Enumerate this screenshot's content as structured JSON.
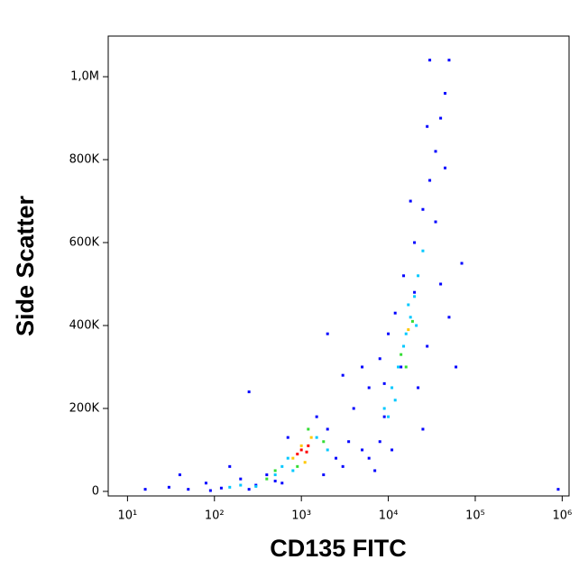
{
  "chart_data": {
    "type": "scatter",
    "x_label": "CD135 FITC",
    "y_label": "Side Scatter",
    "x_log": true,
    "xlim": [
      6,
      1200000
    ],
    "ylim": [
      -11000,
      1098000
    ],
    "xticks": [
      {
        "value": 10,
        "label": "10¹"
      },
      {
        "value": 100,
        "label": "10²"
      },
      {
        "value": 1000,
        "label": "10³"
      },
      {
        "value": 10000,
        "label": "10⁴"
      },
      {
        "value": 100000,
        "label": "10⁵"
      },
      {
        "value": 1000000,
        "label": "10⁶"
      }
    ],
    "yticks": [
      0,
      {
        "value": 200000,
        "label": "200K"
      },
      {
        "value": 400000,
        "label": "400K"
      },
      {
        "value": 600000,
        "label": "600K"
      },
      {
        "value": 800000,
        "label": "800K"
      },
      {
        "value": 1000000,
        "label": "1,0M"
      }
    ],
    "series": [
      {
        "color": "#0000ff",
        "x": [
          30,
          50,
          80,
          120,
          200,
          300,
          400,
          500,
          40,
          150,
          700,
          1500,
          2000,
          2500,
          3000,
          1800,
          600,
          250,
          90,
          3500,
          4000,
          5000,
          6000,
          7000,
          8000,
          9000,
          10000,
          12000,
          15000,
          20000,
          25000,
          30000,
          35000,
          40000,
          45000,
          30000,
          50000,
          18000,
          14000,
          22000,
          28000,
          40000,
          50000,
          60000,
          70000,
          25000,
          11000,
          5000,
          3000,
          2000,
          250,
          16,
          900000,
          6000,
          8000,
          35000,
          28000,
          45000,
          20000,
          9000
        ],
        "values": [
          10000,
          5000,
          20000,
          8000,
          30000,
          15000,
          40000,
          25000,
          40000,
          60000,
          130000,
          180000,
          150000,
          80000,
          60000,
          40000,
          20000,
          5000,
          2000,
          120000,
          200000,
          100000,
          250000,
          50000,
          320000,
          180000,
          380000,
          430000,
          520000,
          600000,
          680000,
          750000,
          820000,
          900000,
          960000,
          1040000,
          1040000,
          700000,
          300000,
          250000,
          350000,
          500000,
          420000,
          300000,
          550000,
          150000,
          100000,
          300000,
          280000,
          380000,
          240000,
          5000,
          5000,
          80000,
          120000,
          650000,
          880000,
          780000,
          480000,
          260000
        ]
      },
      {
        "color": "#00c8ff",
        "x": [
          150,
          200,
          300,
          500,
          600,
          800,
          1500,
          2000,
          700,
          9000,
          11000,
          13000,
          16000,
          18000,
          20000,
          22000,
          25000,
          15000,
          12000,
          10000,
          17000,
          21000
        ],
        "values": [
          10000,
          15000,
          12000,
          40000,
          60000,
          50000,
          130000,
          100000,
          80000,
          200000,
          250000,
          300000,
          380000,
          420000,
          470000,
          520000,
          580000,
          350000,
          220000,
          180000,
          450000,
          400000
        ]
      },
      {
        "color": "#33dd33",
        "x": [
          400,
          500,
          1200,
          1800,
          900,
          14000,
          19000,
          16000
        ],
        "values": [
          30000,
          50000,
          150000,
          120000,
          60000,
          330000,
          410000,
          300000
        ]
      },
      {
        "color": "#ffc800",
        "x": [
          800,
          1000,
          1300,
          1100,
          17000
        ],
        "values": [
          80000,
          110000,
          130000,
          70000,
          390000
        ]
      },
      {
        "color": "#ff0000",
        "x": [
          900,
          1000,
          1150,
          1200
        ],
        "values": [
          90000,
          100000,
          95000,
          110000
        ]
      }
    ]
  }
}
